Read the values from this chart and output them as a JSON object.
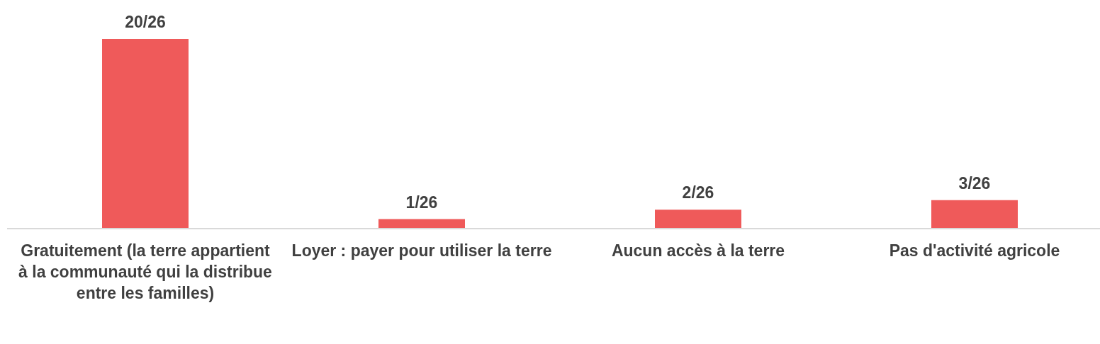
{
  "chart_data": {
    "type": "bar",
    "categories": [
      "Gratuitement (la terre appartient à la communauté qui la distribue entre les familles)",
      "Loyer  : payer pour utiliser la terre",
      "Aucun accès à la terre",
      "Pas d'activité agricole"
    ],
    "values": [
      20,
      1,
      2,
      3
    ],
    "value_labels": [
      "20/26",
      "1/26",
      "2/26",
      "3/26"
    ],
    "color": "#ef5a5a",
    "grid": false,
    "legend": false
  }
}
